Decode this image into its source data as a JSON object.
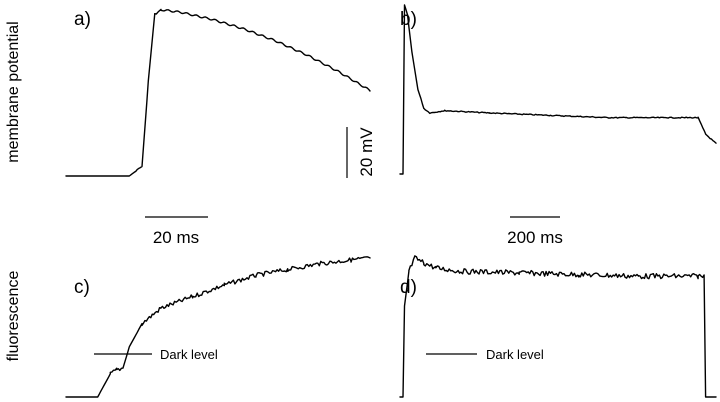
{
  "chart_data": [
    {
      "type": "line",
      "panel_label": "a)",
      "xlabel": "",
      "ylabel": "membrane potential",
      "scale_bars": {
        "time": "20 ms",
        "voltage": "20 mV"
      },
      "series": [
        {
          "values_description": "action potential, short time base",
          "x": [
            0,
            10,
            20,
            24,
            26,
            28,
            30,
            36,
            46,
            56,
            66,
            76,
            86,
            96
          ],
          "y": [
            0,
            0,
            0,
            4,
            40,
            68,
            70,
            69,
            66,
            62,
            57,
            51,
            44,
            36
          ]
        }
      ]
    },
    {
      "type": "line",
      "panel_label": "b)",
      "xlabel": "",
      "ylabel": "",
      "scale_bars": {
        "time": "200 ms"
      },
      "series": [
        {
          "x": [
            0,
            2,
            3,
            5,
            8,
            12,
            16,
            20,
            30,
            60,
            100,
            140,
            180,
            200,
            205,
            212
          ],
          "y": [
            0,
            0,
            72,
            68,
            52,
            36,
            28,
            26,
            27,
            26,
            25,
            24,
            24,
            24,
            17,
            13
          ]
        }
      ]
    },
    {
      "type": "line",
      "panel_label": "c)",
      "ylabel": "fluorescence",
      "annotations": [
        "Dark level"
      ],
      "series": [
        {
          "x": [
            0,
            10,
            14,
            16,
            18,
            20,
            24,
            30,
            40,
            50,
            60,
            70,
            80,
            90,
            96
          ],
          "y": [
            0,
            0,
            12,
            14,
            15,
            26,
            38,
            46,
            52,
            58,
            63,
            66,
            69,
            71,
            72
          ]
        }
      ]
    },
    {
      "type": "line",
      "panel_label": "d)",
      "ylabel": "",
      "annotations": [
        "Dark level"
      ],
      "series": [
        {
          "x": [
            0,
            2,
            3,
            6,
            10,
            16,
            24,
            40,
            80,
            120,
            160,
            200,
            204,
            205,
            212
          ],
          "y": [
            0,
            0,
            55,
            76,
            84,
            81,
            78,
            76,
            75,
            74,
            73,
            73,
            73,
            0,
            0
          ]
        }
      ]
    }
  ],
  "labels": {
    "a": "a)",
    "b": "b)",
    "c": "c)",
    "d": "d)",
    "membrane": "membrane potential",
    "fluorescence": "fluorescence",
    "mv": "20 mV",
    "ms20": "20 ms",
    "ms200": "200 ms",
    "dark_c": "Dark level",
    "dark_d": "Dark level"
  }
}
